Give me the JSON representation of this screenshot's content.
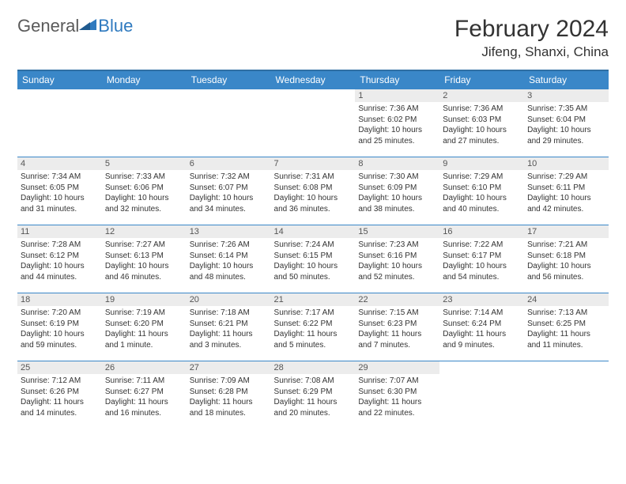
{
  "logo": {
    "part1": "General",
    "part2": "Blue"
  },
  "header": {
    "title": "February 2024",
    "location": "Jifeng, Shanxi, China"
  },
  "style": {
    "header_bg": "#3a87c8",
    "header_text": "#ffffff",
    "row_border": "#3a87c8",
    "daynum_bg": "#ececec",
    "daynum_color": "#555555",
    "body_text": "#333333",
    "logo_gray": "#5a5a5a",
    "logo_blue": "#2f7abf",
    "month_fontsize": 30,
    "location_fontsize": 17,
    "dayhead_fontsize": 12,
    "daynum_fontsize": 11,
    "info_fontsize": 10
  },
  "dayHeaders": [
    "Sunday",
    "Monday",
    "Tuesday",
    "Wednesday",
    "Thursday",
    "Friday",
    "Saturday"
  ],
  "weeks": [
    [
      {
        "n": "",
        "sr": "",
        "ss": "",
        "dl": ""
      },
      {
        "n": "",
        "sr": "",
        "ss": "",
        "dl": ""
      },
      {
        "n": "",
        "sr": "",
        "ss": "",
        "dl": ""
      },
      {
        "n": "",
        "sr": "",
        "ss": "",
        "dl": ""
      },
      {
        "n": "1",
        "sr": "Sunrise: 7:36 AM",
        "ss": "Sunset: 6:02 PM",
        "dl": "Daylight: 10 hours and 25 minutes."
      },
      {
        "n": "2",
        "sr": "Sunrise: 7:36 AM",
        "ss": "Sunset: 6:03 PM",
        "dl": "Daylight: 10 hours and 27 minutes."
      },
      {
        "n": "3",
        "sr": "Sunrise: 7:35 AM",
        "ss": "Sunset: 6:04 PM",
        "dl": "Daylight: 10 hours and 29 minutes."
      }
    ],
    [
      {
        "n": "4",
        "sr": "Sunrise: 7:34 AM",
        "ss": "Sunset: 6:05 PM",
        "dl": "Daylight: 10 hours and 31 minutes."
      },
      {
        "n": "5",
        "sr": "Sunrise: 7:33 AM",
        "ss": "Sunset: 6:06 PM",
        "dl": "Daylight: 10 hours and 32 minutes."
      },
      {
        "n": "6",
        "sr": "Sunrise: 7:32 AM",
        "ss": "Sunset: 6:07 PM",
        "dl": "Daylight: 10 hours and 34 minutes."
      },
      {
        "n": "7",
        "sr": "Sunrise: 7:31 AM",
        "ss": "Sunset: 6:08 PM",
        "dl": "Daylight: 10 hours and 36 minutes."
      },
      {
        "n": "8",
        "sr": "Sunrise: 7:30 AM",
        "ss": "Sunset: 6:09 PM",
        "dl": "Daylight: 10 hours and 38 minutes."
      },
      {
        "n": "9",
        "sr": "Sunrise: 7:29 AM",
        "ss": "Sunset: 6:10 PM",
        "dl": "Daylight: 10 hours and 40 minutes."
      },
      {
        "n": "10",
        "sr": "Sunrise: 7:29 AM",
        "ss": "Sunset: 6:11 PM",
        "dl": "Daylight: 10 hours and 42 minutes."
      }
    ],
    [
      {
        "n": "11",
        "sr": "Sunrise: 7:28 AM",
        "ss": "Sunset: 6:12 PM",
        "dl": "Daylight: 10 hours and 44 minutes."
      },
      {
        "n": "12",
        "sr": "Sunrise: 7:27 AM",
        "ss": "Sunset: 6:13 PM",
        "dl": "Daylight: 10 hours and 46 minutes."
      },
      {
        "n": "13",
        "sr": "Sunrise: 7:26 AM",
        "ss": "Sunset: 6:14 PM",
        "dl": "Daylight: 10 hours and 48 minutes."
      },
      {
        "n": "14",
        "sr": "Sunrise: 7:24 AM",
        "ss": "Sunset: 6:15 PM",
        "dl": "Daylight: 10 hours and 50 minutes."
      },
      {
        "n": "15",
        "sr": "Sunrise: 7:23 AM",
        "ss": "Sunset: 6:16 PM",
        "dl": "Daylight: 10 hours and 52 minutes."
      },
      {
        "n": "16",
        "sr": "Sunrise: 7:22 AM",
        "ss": "Sunset: 6:17 PM",
        "dl": "Daylight: 10 hours and 54 minutes."
      },
      {
        "n": "17",
        "sr": "Sunrise: 7:21 AM",
        "ss": "Sunset: 6:18 PM",
        "dl": "Daylight: 10 hours and 56 minutes."
      }
    ],
    [
      {
        "n": "18",
        "sr": "Sunrise: 7:20 AM",
        "ss": "Sunset: 6:19 PM",
        "dl": "Daylight: 10 hours and 59 minutes."
      },
      {
        "n": "19",
        "sr": "Sunrise: 7:19 AM",
        "ss": "Sunset: 6:20 PM",
        "dl": "Daylight: 11 hours and 1 minute."
      },
      {
        "n": "20",
        "sr": "Sunrise: 7:18 AM",
        "ss": "Sunset: 6:21 PM",
        "dl": "Daylight: 11 hours and 3 minutes."
      },
      {
        "n": "21",
        "sr": "Sunrise: 7:17 AM",
        "ss": "Sunset: 6:22 PM",
        "dl": "Daylight: 11 hours and 5 minutes."
      },
      {
        "n": "22",
        "sr": "Sunrise: 7:15 AM",
        "ss": "Sunset: 6:23 PM",
        "dl": "Daylight: 11 hours and 7 minutes."
      },
      {
        "n": "23",
        "sr": "Sunrise: 7:14 AM",
        "ss": "Sunset: 6:24 PM",
        "dl": "Daylight: 11 hours and 9 minutes."
      },
      {
        "n": "24",
        "sr": "Sunrise: 7:13 AM",
        "ss": "Sunset: 6:25 PM",
        "dl": "Daylight: 11 hours and 11 minutes."
      }
    ],
    [
      {
        "n": "25",
        "sr": "Sunrise: 7:12 AM",
        "ss": "Sunset: 6:26 PM",
        "dl": "Daylight: 11 hours and 14 minutes."
      },
      {
        "n": "26",
        "sr": "Sunrise: 7:11 AM",
        "ss": "Sunset: 6:27 PM",
        "dl": "Daylight: 11 hours and 16 minutes."
      },
      {
        "n": "27",
        "sr": "Sunrise: 7:09 AM",
        "ss": "Sunset: 6:28 PM",
        "dl": "Daylight: 11 hours and 18 minutes."
      },
      {
        "n": "28",
        "sr": "Sunrise: 7:08 AM",
        "ss": "Sunset: 6:29 PM",
        "dl": "Daylight: 11 hours and 20 minutes."
      },
      {
        "n": "29",
        "sr": "Sunrise: 7:07 AM",
        "ss": "Sunset: 6:30 PM",
        "dl": "Daylight: 11 hours and 22 minutes."
      },
      {
        "n": "",
        "sr": "",
        "ss": "",
        "dl": ""
      },
      {
        "n": "",
        "sr": "",
        "ss": "",
        "dl": ""
      }
    ]
  ]
}
